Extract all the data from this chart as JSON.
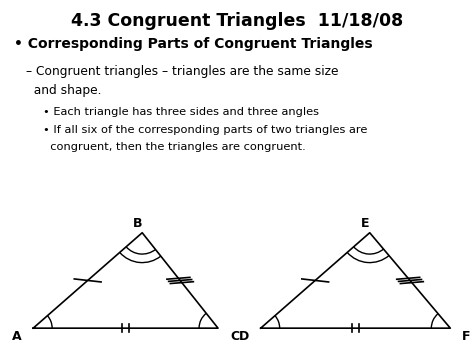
{
  "title": "4.3 Congruent Triangles  11/18/08",
  "bullet1": "Corresponding Parts of Congruent Triangles",
  "dash1_line1": "– Congruent triangles – triangles are the same size",
  "dash1_line2": "  and shape.",
  "bullet2": "• Each triangle has three sides and three angles",
  "bullet3_line1": "• If all six of the corresponding parts of two triangles are",
  "bullet3_line2": "  congruent, then the triangles are congruent.",
  "bg_color": "#ffffff",
  "text_color": "#000000",
  "tri1": {
    "A": [
      0.07,
      0.18
    ],
    "B": [
      0.3,
      0.82
    ],
    "C": [
      0.46,
      0.18
    ]
  },
  "tri2": {
    "D": [
      0.55,
      0.18
    ],
    "E": [
      0.78,
      0.82
    ],
    "F": [
      0.95,
      0.18
    ]
  },
  "label_A": "A",
  "label_B": "B",
  "label_C": "C",
  "label_D": "D",
  "label_E": "E",
  "label_F": "F"
}
